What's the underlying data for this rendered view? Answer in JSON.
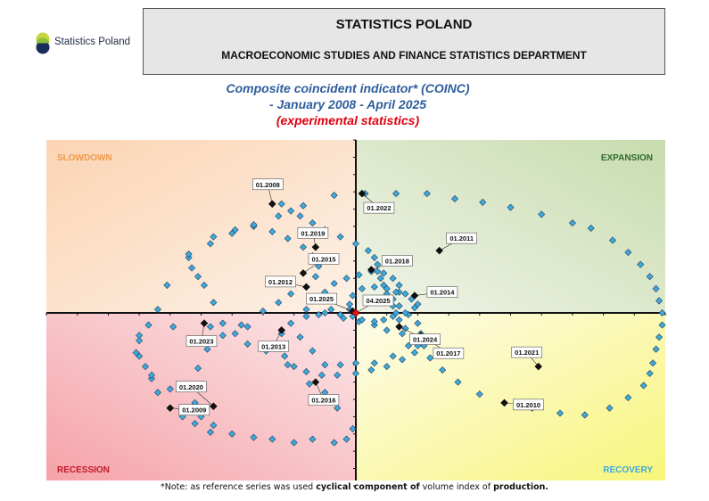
{
  "logo": {
    "text": "Statistics Poland"
  },
  "header": {
    "title": "STATISTICS POLAND",
    "subtitle": "MACROECONOMIC STUDIES AND FINANCE STATISTICS DEPARTMENT"
  },
  "chart_title": {
    "line1": "Composite coincident indicator* (COINC)",
    "line2": "- January 2008 - April 2025",
    "line3": "(experimental statistics)"
  },
  "footnote": {
    "prefix": "*Note: as reference series was used ",
    "bold": "cyclical component of",
    "middle": " volume index of ",
    "bold2": "production."
  },
  "colors": {
    "point_fill": "#3fa9dc",
    "point_stroke": "#1d3f5c",
    "highlight": "#111111",
    "latest": "#e01010",
    "slowdown": "#f2994a",
    "expansion": "#2e6b2e",
    "recession": "#c0182a",
    "recovery": "#3fa9dc"
  },
  "chart_data": {
    "type": "scatter",
    "xlim": [
      -1,
      1
    ],
    "ylim": [
      -1,
      1
    ],
    "quadrants": {
      "top_left": "SLOWDOWN",
      "top_right": "EXPANSION",
      "bottom_left": "RECESSION",
      "bottom_right": "RECOVERY"
    },
    "points": [
      [
        -0.27,
        0.63
      ],
      [
        -0.24,
        0.63
      ],
      [
        -0.21,
        0.59
      ],
      [
        -0.18,
        0.56
      ],
      [
        -0.14,
        0.52
      ],
      [
        -0.1,
        0.48
      ],
      [
        -0.05,
        0.44
      ],
      [
        0.0,
        0.4
      ],
      [
        0.04,
        0.36
      ],
      [
        0.06,
        0.32
      ],
      [
        0.07,
        0.28
      ],
      [
        0.07,
        0.24
      ],
      [
        0.08,
        0.2
      ],
      [
        0.09,
        0.16
      ],
      [
        0.1,
        0.11
      ],
      [
        0.11,
        0.07
      ],
      [
        0.12,
        0.04
      ],
      [
        0.13,
        0.0
      ],
      [
        0.14,
        -0.04
      ],
      [
        0.16,
        -0.09
      ],
      [
        0.2,
        -0.19
      ],
      [
        0.24,
        -0.26
      ],
      [
        0.28,
        -0.33
      ],
      [
        0.33,
        -0.4
      ],
      [
        0.4,
        -0.47
      ],
      [
        0.48,
        -0.52
      ],
      [
        0.57,
        -0.55
      ],
      [
        0.66,
        -0.58
      ],
      [
        0.74,
        -0.59
      ],
      [
        0.82,
        -0.55
      ],
      [
        0.88,
        -0.49
      ],
      [
        0.93,
        -0.42
      ],
      [
        0.95,
        -0.35
      ],
      [
        0.96,
        -0.29
      ],
      [
        0.97,
        -0.21
      ],
      [
        0.98,
        -0.14
      ],
      [
        0.99,
        -0.07
      ],
      [
        0.99,
        0.0
      ],
      [
        0.98,
        0.07
      ],
      [
        0.97,
        0.14
      ],
      [
        0.95,
        0.21
      ],
      [
        0.92,
        0.28
      ],
      [
        0.88,
        0.35
      ],
      [
        0.83,
        0.42
      ],
      [
        0.76,
        0.49
      ],
      [
        0.7,
        0.52
      ],
      [
        0.6,
        0.57
      ],
      [
        0.5,
        0.61
      ],
      [
        0.41,
        0.64
      ],
      [
        0.32,
        0.66
      ],
      [
        0.23,
        0.69
      ],
      [
        0.13,
        0.69
      ],
      [
        0.03,
        0.69
      ],
      [
        -0.07,
        0.68
      ],
      [
        -0.17,
        0.62
      ],
      [
        -0.25,
        0.56
      ],
      [
        -0.33,
        0.5
      ],
      [
        -0.4,
        0.46
      ],
      [
        -0.47,
        0.4
      ],
      [
        -0.54,
        0.32
      ],
      [
        -0.61,
        0.16
      ],
      [
        -0.64,
        0.02
      ],
      [
        -0.67,
        -0.07
      ],
      [
        -0.7,
        -0.16
      ],
      [
        -0.7,
        -0.25
      ],
      [
        -0.68,
        -0.31
      ],
      [
        -0.66,
        -0.38
      ],
      [
        -0.64,
        -0.46
      ],
      [
        -0.6,
        -0.55
      ],
      [
        -0.56,
        -0.6
      ],
      [
        -0.52,
        -0.64
      ],
      [
        -0.47,
        -0.69
      ],
      [
        -0.4,
        -0.7
      ],
      [
        -0.33,
        -0.72
      ],
      [
        -0.27,
        -0.73
      ],
      [
        -0.2,
        -0.75
      ],
      [
        -0.14,
        -0.73
      ],
      [
        -0.07,
        -0.75
      ],
      [
        -0.03,
        -0.73
      ],
      [
        -0.01,
        -0.67
      ],
      [
        -0.06,
        -0.55
      ],
      [
        -0.1,
        -0.46
      ],
      [
        -0.15,
        -0.41
      ],
      [
        -0.22,
        -0.3
      ],
      [
        -0.29,
        -0.22
      ],
      [
        -0.35,
        -0.18
      ],
      [
        -0.39,
        -0.12
      ],
      [
        -0.43,
        -0.06
      ],
      [
        -0.46,
        0.06
      ],
      [
        -0.49,
        0.16
      ],
      [
        -0.51,
        0.21
      ],
      [
        -0.53,
        0.26
      ],
      [
        -0.54,
        0.34
      ],
      [
        -0.46,
        0.44
      ],
      [
        -0.39,
        0.48
      ],
      [
        -0.33,
        0.51
      ],
      [
        -0.27,
        0.47
      ],
      [
        -0.22,
        0.43
      ],
      [
        -0.17,
        0.38
      ],
      [
        -0.14,
        0.33
      ],
      [
        -0.12,
        0.27
      ],
      [
        -0.13,
        0.21
      ],
      [
        -0.16,
        0.15
      ],
      [
        -0.21,
        0.11
      ],
      [
        -0.25,
        0.06
      ],
      [
        -0.3,
        0.01
      ],
      [
        -0.37,
        -0.07
      ],
      [
        -0.43,
        -0.13
      ],
      [
        -0.48,
        -0.21
      ],
      [
        -0.51,
        -0.32
      ],
      [
        -0.52,
        -0.43
      ],
      [
        -0.52,
        -0.52
      ],
      [
        -0.5,
        -0.6
      ],
      [
        -0.46,
        -0.65
      ],
      [
        -0.6,
        -0.44
      ],
      [
        -0.66,
        -0.36
      ],
      [
        -0.71,
        -0.23
      ],
      [
        -0.7,
        -0.13
      ],
      [
        -0.59,
        -0.08
      ],
      [
        -0.47,
        -0.08
      ],
      [
        -0.35,
        -0.08
      ],
      [
        -0.24,
        -0.1
      ],
      [
        -0.18,
        -0.14
      ],
      [
        -0.14,
        -0.22
      ],
      [
        -0.1,
        -0.3
      ],
      [
        -0.05,
        -0.3
      ],
      [
        0.0,
        -0.29
      ],
      [
        0.06,
        -0.29
      ],
      [
        0.12,
        -0.25
      ],
      [
        0.17,
        -0.19
      ],
      [
        0.21,
        -0.12
      ],
      [
        0.2,
        -0.06
      ],
      [
        0.17,
        -0.01
      ],
      [
        0.14,
        0.04
      ],
      [
        0.12,
        0.08
      ],
      [
        0.14,
        0.12
      ],
      [
        0.14,
        0.16
      ],
      [
        0.12,
        0.2
      ],
      [
        0.09,
        0.23
      ],
      [
        0.05,
        0.24
      ],
      [
        0.01,
        0.22
      ],
      [
        -0.03,
        0.2
      ],
      [
        -0.07,
        0.17
      ],
      [
        -0.1,
        0.12
      ],
      [
        -0.14,
        0.07
      ],
      [
        -0.16,
        0.02
      ],
      [
        -0.12,
        -0.01
      ],
      [
        -0.08,
        0.02
      ],
      [
        -0.04,
        -0.03
      ],
      [
        0.01,
        -0.05
      ],
      [
        0.06,
        -0.07
      ],
      [
        0.1,
        -0.1
      ],
      [
        0.15,
        -0.12
      ],
      [
        0.19,
        -0.15
      ],
      [
        0.22,
        -0.19
      ],
      [
        0.19,
        -0.23
      ],
      [
        0.15,
        -0.27
      ],
      [
        0.1,
        -0.31
      ],
      [
        0.05,
        -0.33
      ],
      [
        0.0,
        -0.35
      ],
      [
        -0.06,
        -0.36
      ],
      [
        -0.11,
        -0.36
      ],
      [
        -0.16,
        -0.34
      ],
      [
        -0.2,
        -0.31
      ],
      [
        -0.23,
        -0.25
      ],
      [
        -0.25,
        -0.18
      ],
      [
        -0.24,
        -0.12
      ],
      [
        -0.21,
        -0.06
      ],
      [
        -0.16,
        -0.02
      ],
      [
        -0.1,
        0.0
      ],
      [
        -0.05,
        -0.01
      ],
      [
        -0.01,
        -0.02
      ],
      [
        0.02,
        -0.04
      ],
      [
        0.06,
        -0.05
      ],
      [
        0.09,
        -0.04
      ],
      [
        0.12,
        -0.02
      ],
      [
        0.16,
        0.0
      ],
      [
        0.19,
        0.03
      ],
      [
        0.2,
        0.05
      ],
      [
        0.18,
        0.08
      ],
      [
        0.16,
        0.11
      ],
      [
        0.13,
        0.12
      ],
      [
        0.1,
        0.14
      ],
      [
        0.06,
        0.15
      ],
      [
        0.02,
        0.14
      ],
      [
        -0.01,
        0.1
      ],
      [
        -0.02,
        0.05
      ],
      [
        -0.02,
        0.02
      ],
      [
        -0.01,
        0.01
      ]
    ],
    "highlights": [
      {
        "label": "01.2008",
        "x": -0.27,
        "y": 0.63
      },
      {
        "label": "01.2009",
        "x": -0.6,
        "y": -0.55
      },
      {
        "label": "01.2010",
        "x": 0.48,
        "y": -0.52
      },
      {
        "label": "01.2011",
        "x": 0.27,
        "y": 0.36
      },
      {
        "label": "01.2012",
        "x": -0.16,
        "y": 0.15
      },
      {
        "label": "01.2013",
        "x": -0.24,
        "y": -0.1
      },
      {
        "label": "01.2014",
        "x": 0.19,
        "y": 0.1
      },
      {
        "label": "01.2015",
        "x": -0.17,
        "y": 0.23
      },
      {
        "label": "01.2016",
        "x": -0.13,
        "y": -0.4
      },
      {
        "label": "01.2017",
        "x": 0.21,
        "y": -0.13
      },
      {
        "label": "01.2018",
        "x": 0.05,
        "y": 0.25
      },
      {
        "label": "01.2019",
        "x": -0.13,
        "y": 0.38
      },
      {
        "label": "01.2020",
        "x": -0.46,
        "y": -0.54
      },
      {
        "label": "01.2021",
        "x": 0.59,
        "y": -0.31
      },
      {
        "label": "01.2022",
        "x": 0.02,
        "y": 0.69
      },
      {
        "label": "01.2023",
        "x": -0.49,
        "y": -0.06
      },
      {
        "label": "01.2024",
        "x": 0.14,
        "y": -0.08
      },
      {
        "label": "01.2025",
        "x": -0.01,
        "y": 0.01
      },
      {
        "label": "04.2025",
        "x": 0.0,
        "y": 0.0
      }
    ]
  }
}
